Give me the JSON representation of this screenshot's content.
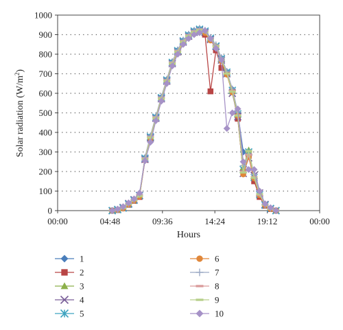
{
  "chart_data": {
    "type": "line",
    "title": "",
    "xlabel": "Hours",
    "ylabel": "Solar radiation (W/m²)",
    "ylabel_parts": {
      "main": "Solar radiation (W/m",
      "sup": "2",
      "tail": ")"
    },
    "xlim": [
      0,
      24
    ],
    "ylim": [
      0,
      1000
    ],
    "x_ticks": [
      {
        "value": 0,
        "label": "00:00"
      },
      {
        "value": 4.8,
        "label": "04:48"
      },
      {
        "value": 9.6,
        "label": "09:36"
      },
      {
        "value": 14.4,
        "label": "14:24"
      },
      {
        "value": 19.2,
        "label": "19:12"
      },
      {
        "value": 24,
        "label": "00:00"
      }
    ],
    "y_ticks": [
      0,
      100,
      200,
      300,
      400,
      500,
      600,
      700,
      800,
      900,
      1000
    ],
    "grid": {
      "horizontal": true,
      "style": "dotted"
    },
    "legend_position": "bottom",
    "x": [
      5,
      5.5,
      6,
      6.5,
      7,
      7.5,
      8,
      8.5,
      9,
      9.5,
      10,
      10.5,
      11,
      11.5,
      12,
      12.5,
      13,
      13.5,
      14,
      14.5,
      15,
      15.5,
      16,
      16.5,
      17,
      17.5,
      18,
      18.5,
      19,
      19.5,
      20
    ],
    "series": [
      {
        "name": "1",
        "color": "#4a7ebb",
        "marker": "diamond",
        "values": [
          0,
          5,
          15,
          35,
          55,
          80,
          270,
          380,
          480,
          580,
          670,
          760,
          820,
          870,
          900,
          920,
          930,
          920,
          880,
          840,
          780,
          710,
          620,
          500,
          300,
          280,
          160,
          80,
          30,
          10,
          0
        ]
      },
      {
        "name": "2",
        "color": "#b84545",
        "marker": "square",
        "values": [
          0,
          3,
          12,
          30,
          50,
          70,
          260,
          370,
          470,
          570,
          660,
          750,
          810,
          860,
          890,
          910,
          920,
          900,
          610,
          820,
          730,
          700,
          610,
          470,
          200,
          280,
          150,
          70,
          25,
          8,
          0
        ]
      },
      {
        "name": "3",
        "color": "#8cb04a",
        "marker": "triangle",
        "values": [
          0,
          4,
          14,
          32,
          52,
          75,
          265,
          375,
          475,
          575,
          665,
          755,
          815,
          865,
          895,
          915,
          925,
          915,
          880,
          845,
          775,
          705,
          610,
          490,
          220,
          310,
          175,
          85,
          30,
          10,
          0
        ]
      },
      {
        "name": "4",
        "color": "#7a5f99",
        "marker": "x",
        "values": [
          0,
          6,
          16,
          36,
          56,
          78,
          262,
          372,
          472,
          572,
          662,
          752,
          812,
          862,
          892,
          912,
          922,
          912,
          875,
          840,
          770,
          700,
          600,
          480,
          190,
          270,
          180,
          90,
          32,
          9,
          0
        ]
      },
      {
        "name": "5",
        "color": "#3fa3c0",
        "marker": "star",
        "values": [
          0,
          5,
          13,
          33,
          53,
          76,
          268,
          378,
          478,
          578,
          668,
          758,
          818,
          868,
          898,
          918,
          928,
          918,
          882,
          842,
          778,
          708,
          615,
          495,
          210,
          300,
          170,
          82,
          28,
          11,
          0
        ]
      },
      {
        "name": "6",
        "color": "#e0873a",
        "marker": "circle",
        "values": [
          0,
          4,
          11,
          31,
          51,
          72,
          258,
          368,
          468,
          568,
          658,
          748,
          808,
          858,
          888,
          908,
          918,
          908,
          870,
          835,
          765,
          695,
          605,
          485,
          185,
          275,
          165,
          78,
          27,
          8,
          0
        ]
      },
      {
        "name": "7",
        "color": "#9aa9c4",
        "marker": "plus",
        "values": [
          0,
          6,
          17,
          37,
          57,
          82,
          272,
          382,
          482,
          582,
          672,
          762,
          822,
          872,
          902,
          922,
          932,
          922,
          885,
          848,
          782,
          712,
          622,
          505,
          230,
          290,
          185,
          88,
          31,
          12,
          0
        ]
      },
      {
        "name": "8",
        "color": "#d99a9a",
        "marker": "dash",
        "values": [
          0,
          5,
          14,
          34,
          54,
          77,
          266,
          376,
          476,
          576,
          666,
          756,
          816,
          866,
          896,
          916,
          926,
          916,
          878,
          843,
          772,
          702,
          612,
          488,
          200,
          285,
          172,
          80,
          29,
          9,
          0
        ]
      },
      {
        "name": "9",
        "color": "#b6cf8a",
        "marker": "dash",
        "values": [
          0,
          4,
          13,
          33,
          53,
          74,
          263,
          373,
          473,
          573,
          663,
          753,
          813,
          863,
          893,
          913,
          923,
          913,
          876,
          841,
          771,
          701,
          608,
          486,
          195,
          305,
          168,
          84,
          30,
          10,
          0
        ]
      },
      {
        "name": "10",
        "color": "#a692c7",
        "marker": "diamond",
        "values": [
          0,
          8,
          20,
          40,
          60,
          90,
          255,
          350,
          460,
          560,
          650,
          740,
          800,
          850,
          880,
          900,
          910,
          920,
          880,
          830,
          770,
          420,
          500,
          520,
          250,
          210,
          210,
          100,
          35,
          15,
          0
        ]
      }
    ]
  }
}
